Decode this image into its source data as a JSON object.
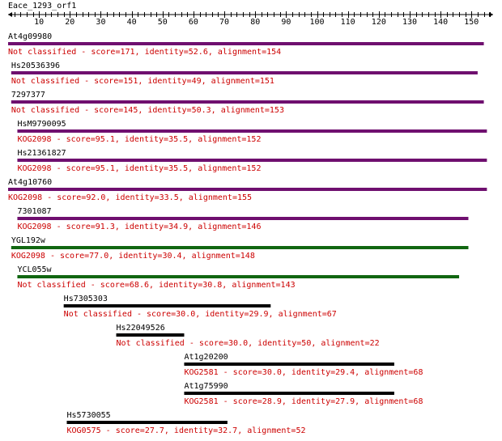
{
  "query": {
    "name": "Eace_1293_orf1"
  },
  "axis": {
    "min": 0,
    "max": 157,
    "major_step": 10,
    "minor_step": 2,
    "tick_labels": [
      "10",
      "20",
      "30",
      "40",
      "50",
      "60",
      "70",
      "80",
      "90",
      "100",
      "110",
      "120",
      "130",
      "140",
      "150"
    ]
  },
  "colors": {
    "purple": "#6f0f6f",
    "green": "#116611",
    "black": "#000000",
    "label_text": "#000000",
    "detail_text": "#cc0000"
  },
  "hits": [
    {
      "name": "At4g09980",
      "start": 0,
      "end": 154,
      "color": "purple",
      "description": "Not classified - score=171, identity=52.6, alignment=154"
    },
    {
      "name": "Hs20536396",
      "start": 1,
      "end": 152,
      "color": "purple",
      "description": "Not classified - score=151, identity=49, alignment=151"
    },
    {
      "name": "7297377",
      "start": 1,
      "end": 154,
      "color": "purple",
      "description": "Not classified - score=145, identity=50.3, alignment=153"
    },
    {
      "name": "HsM9790095",
      "start": 3,
      "end": 155,
      "color": "purple",
      "description": "KOG2098 - score=95.1, identity=35.5, alignment=152"
    },
    {
      "name": "Hs21361827",
      "start": 3,
      "end": 155,
      "color": "purple",
      "description": "KOG2098 - score=95.1, identity=35.5, alignment=152"
    },
    {
      "name": "At4g10760",
      "start": 0,
      "end": 155,
      "color": "purple",
      "description": "KOG2098 - score=92.0, identity=33.5, alignment=155"
    },
    {
      "name": "7301087",
      "start": 3,
      "end": 149,
      "color": "purple",
      "description": "KOG2098 - score=91.3, identity=34.9, alignment=146"
    },
    {
      "name": "YGL192w",
      "start": 1,
      "end": 149,
      "color": "green",
      "description": "KOG2098 - score=77.0, identity=30.4, alignment=148"
    },
    {
      "name": "YCL055w",
      "start": 3,
      "end": 146,
      "color": "green",
      "description": "Not classified - score=68.6, identity=30.8, alignment=143"
    },
    {
      "name": "Hs7305303",
      "start": 18,
      "end": 85,
      "color": "black",
      "description": "Not classified - score=30.0, identity=29.9, alignment=67"
    },
    {
      "name": "Hs22049526",
      "start": 35,
      "end": 57,
      "color": "black",
      "description": "Not classified - score=30.0, identity=50, alignment=22"
    },
    {
      "name": "At1g20200",
      "start": 57,
      "end": 125,
      "color": "black",
      "description": "KOG2581 - score=30.0, identity=29.4, alignment=68"
    },
    {
      "name": "At1g75990",
      "start": 57,
      "end": 125,
      "color": "black",
      "description": "KOG2581 - score=28.9, identity=27.9, alignment=68"
    },
    {
      "name": "Hs5730055",
      "start": 19,
      "end": 71,
      "color": "black",
      "description": "KOG0575 - score=27.7, identity=32.7, alignment=52"
    }
  ]
}
